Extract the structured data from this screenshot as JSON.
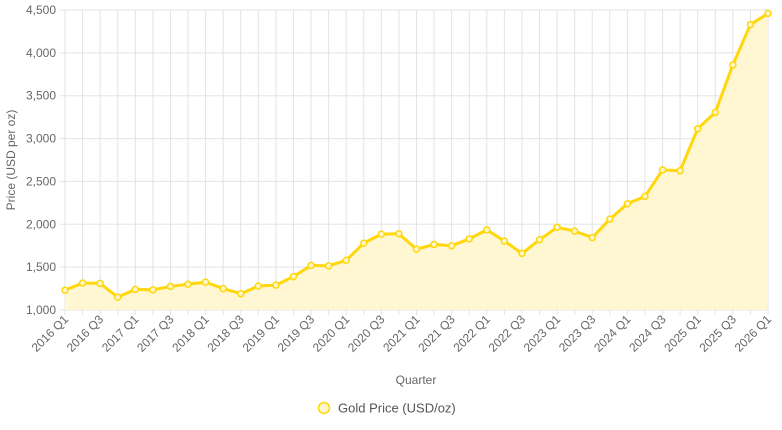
{
  "chart_data": {
    "type": "area",
    "xlabel": "Quarter",
    "ylabel": "Price (USD per oz)",
    "ylim": [
      1000,
      4500
    ],
    "yticks": [
      1000,
      1500,
      2000,
      2500,
      3000,
      3500,
      4000,
      4500
    ],
    "ytick_labels": [
      "1,000",
      "1,500",
      "2,000",
      "2,500",
      "3,000",
      "3,500",
      "4,000",
      "4,500"
    ],
    "categories": [
      "2016 Q1",
      "2016 Q2",
      "2016 Q3",
      "2016 Q4",
      "2017 Q1",
      "2017 Q2",
      "2017 Q3",
      "2017 Q4",
      "2018 Q1",
      "2018 Q2",
      "2018 Q3",
      "2018 Q4",
      "2019 Q1",
      "2019 Q2",
      "2019 Q3",
      "2019 Q4",
      "2020 Q1",
      "2020 Q2",
      "2020 Q3",
      "2020 Q4",
      "2021 Q1",
      "2021 Q2",
      "2021 Q3",
      "2021 Q4",
      "2022 Q1",
      "2022 Q2",
      "2022 Q3",
      "2022 Q4",
      "2023 Q1",
      "2023 Q2",
      "2023 Q3",
      "2023 Q4",
      "2024 Q1",
      "2024 Q2",
      "2024 Q3",
      "2024 Q4",
      "2025 Q1",
      "2025 Q2",
      "2025 Q3",
      "2025 Q4",
      "2026 Q1"
    ],
    "visible_tick_labels": [
      "2016 Q1",
      "2016 Q3",
      "2017 Q1",
      "2017 Q3",
      "2018 Q1",
      "2018 Q3",
      "2019 Q1",
      "2019 Q3",
      "2020 Q1",
      "2020 Q3",
      "2021 Q1",
      "2021 Q3",
      "2022 Q1",
      "2022 Q3",
      "2023 Q1",
      "2023 Q3",
      "2024 Q1",
      "2024 Q3",
      "2025 Q1",
      "2025 Q3",
      "2026 Q1"
    ],
    "series": [
      {
        "name": "Gold Price (USD/oz)",
        "values": [
          1230,
          1315,
          1310,
          1150,
          1240,
          1235,
          1275,
          1300,
          1325,
          1250,
          1190,
          1280,
          1290,
          1390,
          1520,
          1515,
          1580,
          1780,
          1885,
          1890,
          1710,
          1765,
          1750,
          1830,
          1935,
          1805,
          1660,
          1820,
          1965,
          1920,
          1845,
          2060,
          2240,
          2325,
          2635,
          2625,
          3115,
          3305,
          3860,
          4330,
          4460
        ]
      }
    ],
    "colors": {
      "line": "#FFD70A",
      "fill": "#FFF6CC",
      "grid": "#E3E3E3"
    },
    "grid": true,
    "legend_position": "bottom"
  }
}
